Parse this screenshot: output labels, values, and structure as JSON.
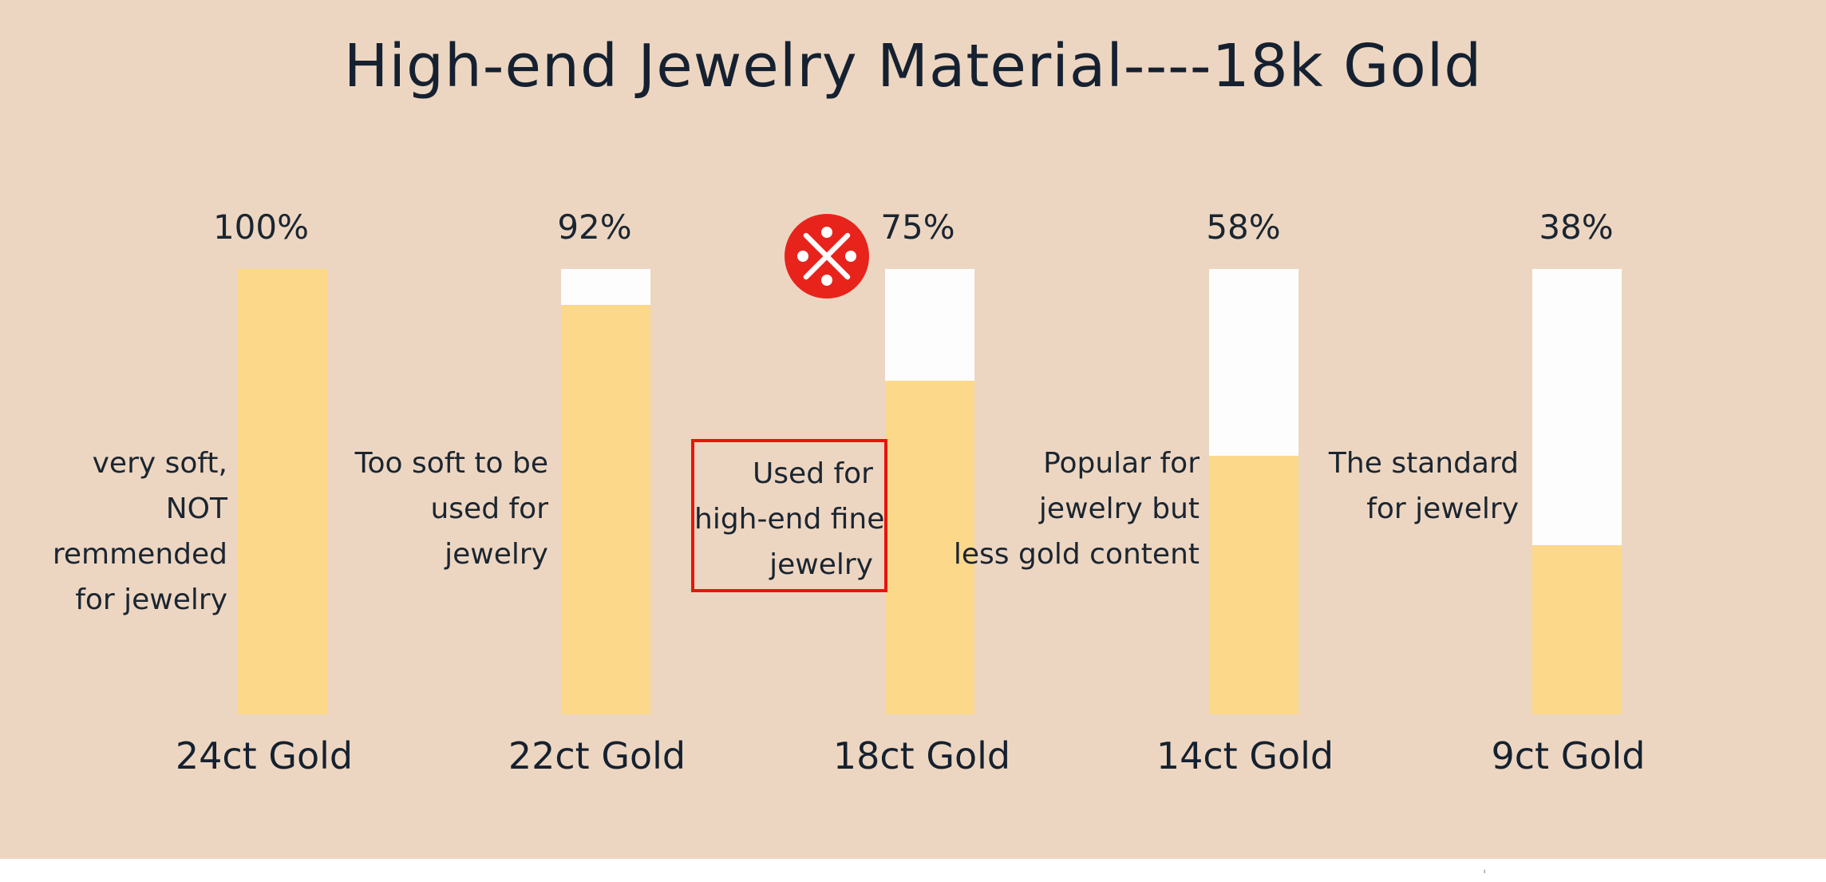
{
  "title": "High-end Jewelry Material----18k Gold",
  "chart_data": {
    "type": "bar",
    "title": "High-end Jewelry Material----18k Gold",
    "categories": [
      "24ct Gold",
      "22ct Gold",
      "18ct Gold",
      "14ct Gold",
      "9ct Gold"
    ],
    "values": [
      100,
      92,
      75,
      58,
      38
    ],
    "value_labels": [
      "100%",
      "92%",
      "75%",
      "58%",
      "38%"
    ],
    "ylim": [
      0,
      100
    ],
    "grid": false,
    "legend": "none",
    "bar_fill_color": "#fcd88b",
    "bar_track_color": "#fdfdfd",
    "background_color": "#edd6c1",
    "text_color": "#1a2531",
    "highlight_index": 2,
    "annotations": [
      {
        "bar": "24ct Gold",
        "text": "very soft, NOT remmended for jewelry"
      },
      {
        "bar": "22ct Gold",
        "text": "Too soft to be used for jewelry"
      },
      {
        "bar": "18ct Gold",
        "text": "Used for high-end fine jewelry",
        "boxed": true
      },
      {
        "bar": "14ct Gold",
        "text": "Popular for jewelry but less gold content"
      },
      {
        "bar": "9ct Gold",
        "text": "The standard for jewelry"
      }
    ]
  },
  "bars": [
    {
      "percent_label": "100%",
      "category": "24ct Gold",
      "desc": [
        "very soft,",
        "NOT",
        "remmended",
        "for jewelry"
      ]
    },
    {
      "percent_label": "92%",
      "category": "22ct Gold",
      "desc": [
        "Too soft to be",
        "used for",
        "jewelry"
      ]
    },
    {
      "percent_label": "75%",
      "category": "18ct Gold",
      "desc": [
        "Used for",
        "high-end fine",
        "jewelry"
      ]
    },
    {
      "percent_label": "58%",
      "category": "14ct Gold",
      "desc": [
        "Popular for",
        "jewelry but",
        "less gold content"
      ]
    },
    {
      "percent_label": "38%",
      "category": "9ct Gold",
      "desc": [
        "The standard",
        "for jewelry"
      ]
    }
  ],
  "icons": {
    "reference_mark": "white ※ (X cross with four dots) in red circle"
  },
  "colors": {
    "background": "#edd6c1",
    "bar_yellow": "#fcd88b",
    "bar_white": "#fdfdfd",
    "ink": "#1a2531",
    "badge_red": "#e8231c",
    "box_red": "#e8150b",
    "footer_white": "#ffffff"
  }
}
